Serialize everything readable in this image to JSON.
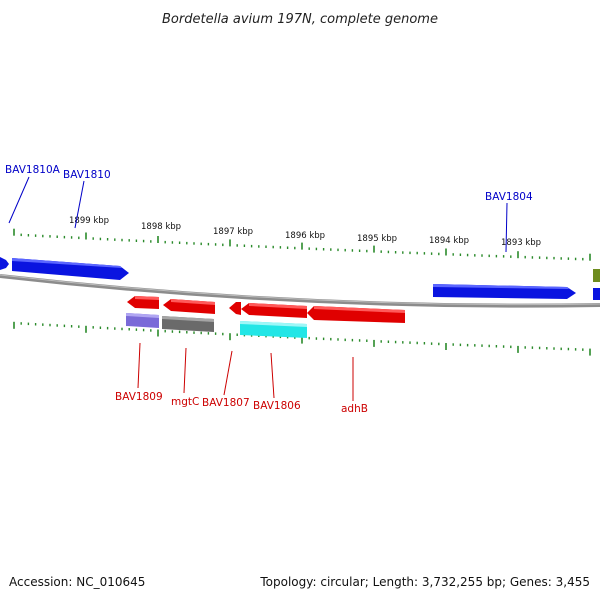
{
  "title": "Bordetella avium 197N, complete genome",
  "footer": {
    "accession": "Accession: NC_010645",
    "summary": "Topology: circular; Length: 3,732,255 bp; Genes: 3,455"
  },
  "colors": {
    "top_strand_gene": "#0a14e0",
    "bottom_strand_gene": "#e00000",
    "label_top": "#0000c8",
    "label_bottom": "#cc0000",
    "backbone": "#8c8c8c",
    "ticks": "#2a8a2a",
    "rna_purple": "#7a6ad8",
    "rna_gray": "#6a6a6a",
    "rna_cyan": "#22e6e6",
    "other_olive": "#6e8c1e"
  },
  "scale_labels": [
    "1899 kbp",
    "1898 kbp",
    "1897 kbp",
    "1896 kbp",
    "1895 kbp",
    "1894 kbp",
    "1893 kbp"
  ],
  "gene_labels": {
    "top": [
      "BAV1810A",
      "BAV1810",
      "BAV1804"
    ],
    "bottom": [
      "BAV1809",
      "mgtC",
      "BAV1807",
      "BAV1806",
      "adhB"
    ]
  }
}
